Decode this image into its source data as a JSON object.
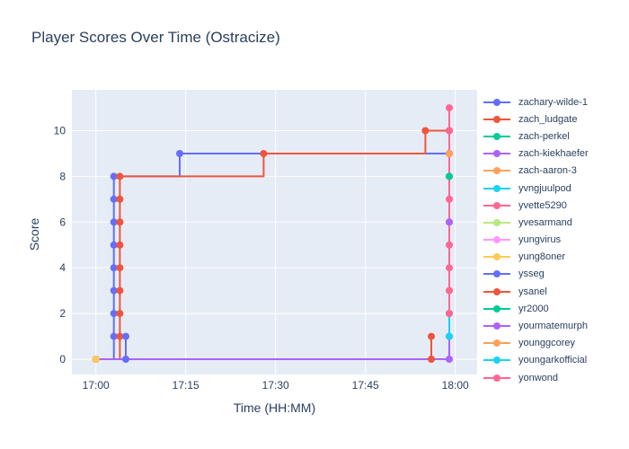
{
  "chart_data": {
    "type": "line",
    "line_shape": "step-hv",
    "mode": "lines+markers",
    "title": "Player Scores Over Time (Ostracize)",
    "xlabel": "Time (HH:MM)",
    "ylabel": "Score",
    "x_ticks": [
      "17:00",
      "17:15",
      "17:30",
      "17:45",
      "18:00"
    ],
    "y_ticks": [
      0,
      2,
      4,
      6,
      8,
      10
    ],
    "ylim": [
      -0.7,
      11.8
    ],
    "grid": true,
    "legend_position": "right",
    "plot_bg": "#E5ECF6",
    "grid_color": "#FFFFFF",
    "text_color": "#2a3f5f",
    "series": [
      {
        "name": "zachary-wilde-1",
        "color": "#636EFA",
        "points": [
          [
            "17:00",
            0
          ],
          [
            "17:03",
            1
          ],
          [
            "17:03",
            2
          ],
          [
            "17:03",
            3
          ],
          [
            "17:03",
            4
          ],
          [
            "17:03",
            5
          ],
          [
            "17:03",
            6
          ],
          [
            "17:03",
            7
          ],
          [
            "17:03",
            8
          ],
          [
            "17:14",
            9
          ],
          [
            "17:59",
            9
          ]
        ]
      },
      {
        "name": "zach_ludgate",
        "color": "#EF553B",
        "points": [
          [
            "17:00",
            0
          ],
          [
            "17:04",
            1
          ],
          [
            "17:04",
            2
          ],
          [
            "17:04",
            3
          ],
          [
            "17:04",
            4
          ],
          [
            "17:04",
            5
          ],
          [
            "17:04",
            6
          ],
          [
            "17:04",
            7
          ],
          [
            "17:04",
            8
          ],
          [
            "17:28",
            9
          ],
          [
            "17:55",
            10
          ],
          [
            "17:59",
            10
          ]
        ]
      },
      {
        "name": "zach-perkel",
        "color": "#00CC96",
        "points": []
      },
      {
        "name": "zach-kiekhaefer",
        "color": "#AB63FA",
        "points": [
          [
            "17:00",
            0
          ],
          [
            "17:59",
            0
          ],
          [
            "17:59",
            1
          ]
        ]
      },
      {
        "name": "zach-aaron-3",
        "color": "#FFA15A",
        "points": [
          [
            "17:59",
            3
          ]
        ]
      },
      {
        "name": "yvngjuulpod",
        "color": "#19D3F3",
        "points": []
      },
      {
        "name": "yvette5290",
        "color": "#FF6692",
        "points": [
          [
            "17:59",
            2
          ],
          [
            "17:59",
            3
          ],
          [
            "17:59",
            4
          ],
          [
            "17:59",
            5
          ],
          [
            "17:59",
            6
          ],
          [
            "17:59",
            7
          ],
          [
            "17:59",
            8
          ],
          [
            "17:59",
            9
          ],
          [
            "17:59",
            10
          ],
          [
            "17:59",
            11
          ]
        ]
      },
      {
        "name": "yvesarmand",
        "color": "#B6E880",
        "points": []
      },
      {
        "name": "yungvirus",
        "color": "#FF97FF",
        "points": []
      },
      {
        "name": "yung8oner",
        "color": "#FECB52",
        "points": [
          [
            "17:00",
            0
          ]
        ]
      },
      {
        "name": "ysseg",
        "color": "#636EFA",
        "points": [
          [
            "17:05",
            0
          ],
          [
            "17:05",
            1
          ]
        ]
      },
      {
        "name": "ysanel",
        "color": "#EF553B",
        "points": [
          [
            "17:56",
            0
          ],
          [
            "17:56",
            1
          ]
        ]
      },
      {
        "name": "yr2000",
        "color": "#00CC96",
        "points": [
          [
            "17:59",
            8
          ]
        ]
      },
      {
        "name": "yourmatemurph",
        "color": "#AB63FA",
        "points": [
          [
            "17:59",
            6
          ]
        ]
      },
      {
        "name": "younggcorey",
        "color": "#FFA15A",
        "points": [
          [
            "17:59",
            9
          ]
        ]
      },
      {
        "name": "youngarkofficial",
        "color": "#19D3F3",
        "points": [
          [
            "17:59",
            1
          ],
          [
            "17:59",
            2
          ]
        ]
      },
      {
        "name": "yonwond",
        "color": "#FF6692",
        "points": [
          [
            "17:59",
            2
          ]
        ]
      }
    ]
  }
}
